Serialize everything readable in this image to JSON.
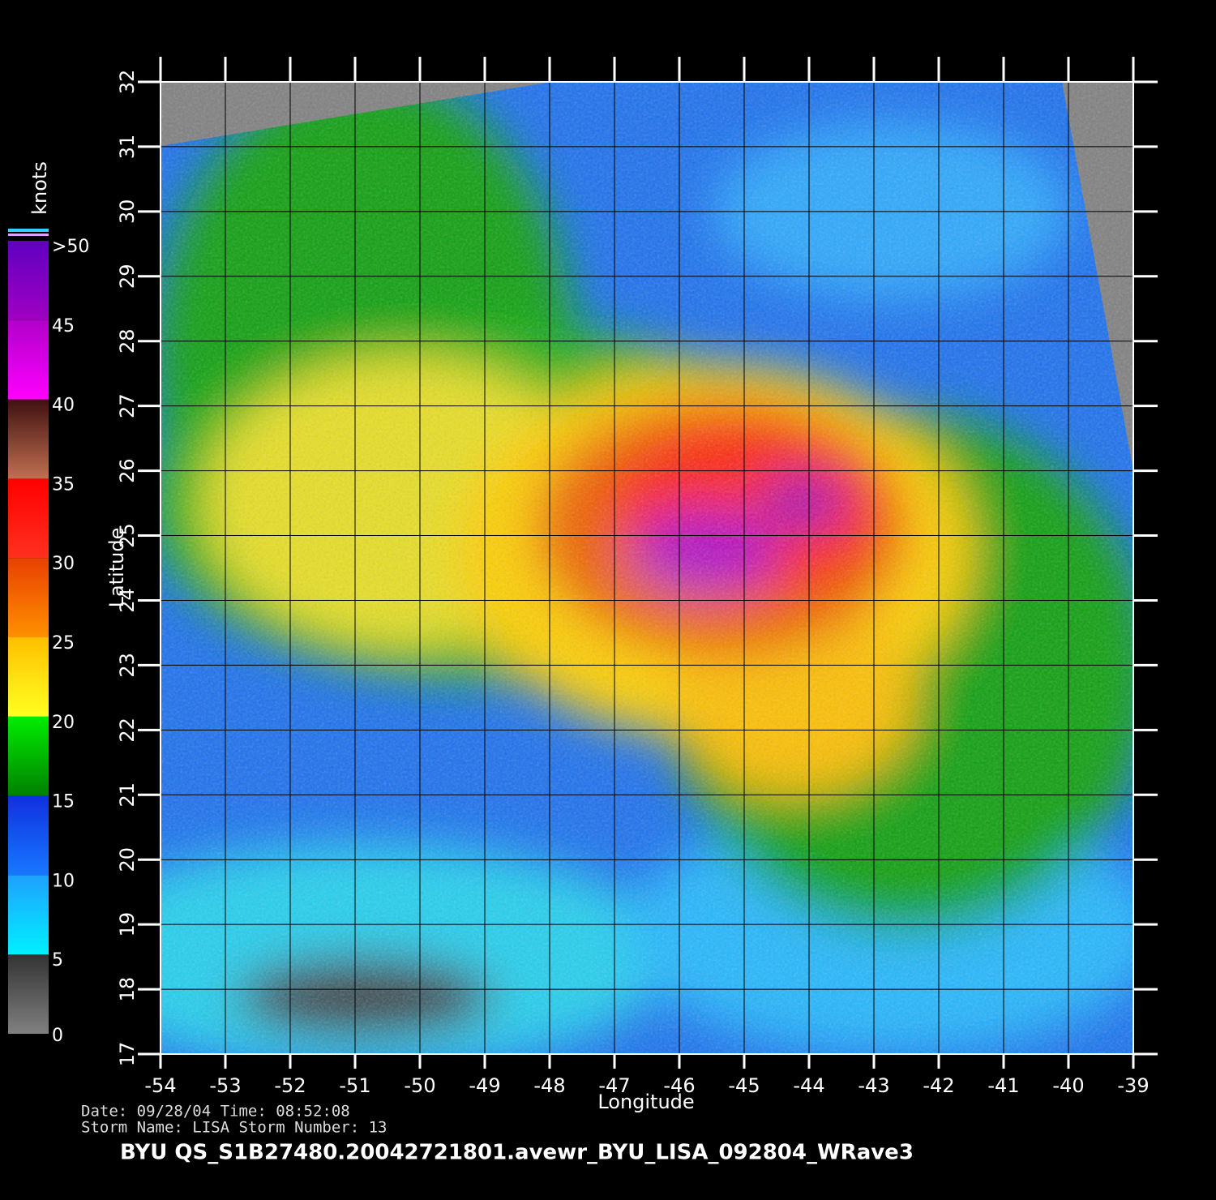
{
  "map": {
    "xlabel": "Longitude",
    "ylabel": "Latitude",
    "xlim": [
      -54,
      -39
    ],
    "ylim": [
      17,
      32
    ],
    "xticks": [
      -54,
      -53,
      -52,
      -51,
      -50,
      -49,
      -48,
      -47,
      -46,
      -45,
      -44,
      -43,
      -42,
      -41,
      -40,
      -39
    ],
    "yticks": [
      17,
      18,
      19,
      20,
      21,
      22,
      23,
      24,
      25,
      26,
      27,
      28,
      29,
      30,
      31,
      32
    ]
  },
  "colorbar": {
    "title": "knots",
    "lim": [
      0,
      50
    ],
    "ticks": [
      0,
      5,
      10,
      15,
      20,
      25,
      30,
      35,
      40,
      45,
      {
        "value": 50,
        "label": ">50"
      }
    ],
    "colors": [
      [
        "#808080",
        "#333333"
      ],
      [
        "#00f0ff",
        "#1fa0ff"
      ],
      [
        "#1878ff",
        "#1030e0"
      ],
      [
        "#008000",
        "#00ee00"
      ],
      [
        "#ffff20",
        "#ffc000"
      ],
      [
        "#ff9000",
        "#e84000"
      ],
      [
        "#ff3020",
        "#ff0000"
      ],
      [
        "#c07050",
        "#401010"
      ],
      [
        "#ff00ff",
        "#b000c8"
      ],
      [
        "#a000c0",
        "#6000c0"
      ]
    ]
  },
  "footer": {
    "date_line": "Date:  09/28/04   Time:  08:52:08",
    "storm_line": "Storm  Name:  LISA    Storm  Number:  13",
    "title": "BYU  QS_S1B27480.20042721801.avewr_BYU_LISA_092804_WRave3"
  }
}
